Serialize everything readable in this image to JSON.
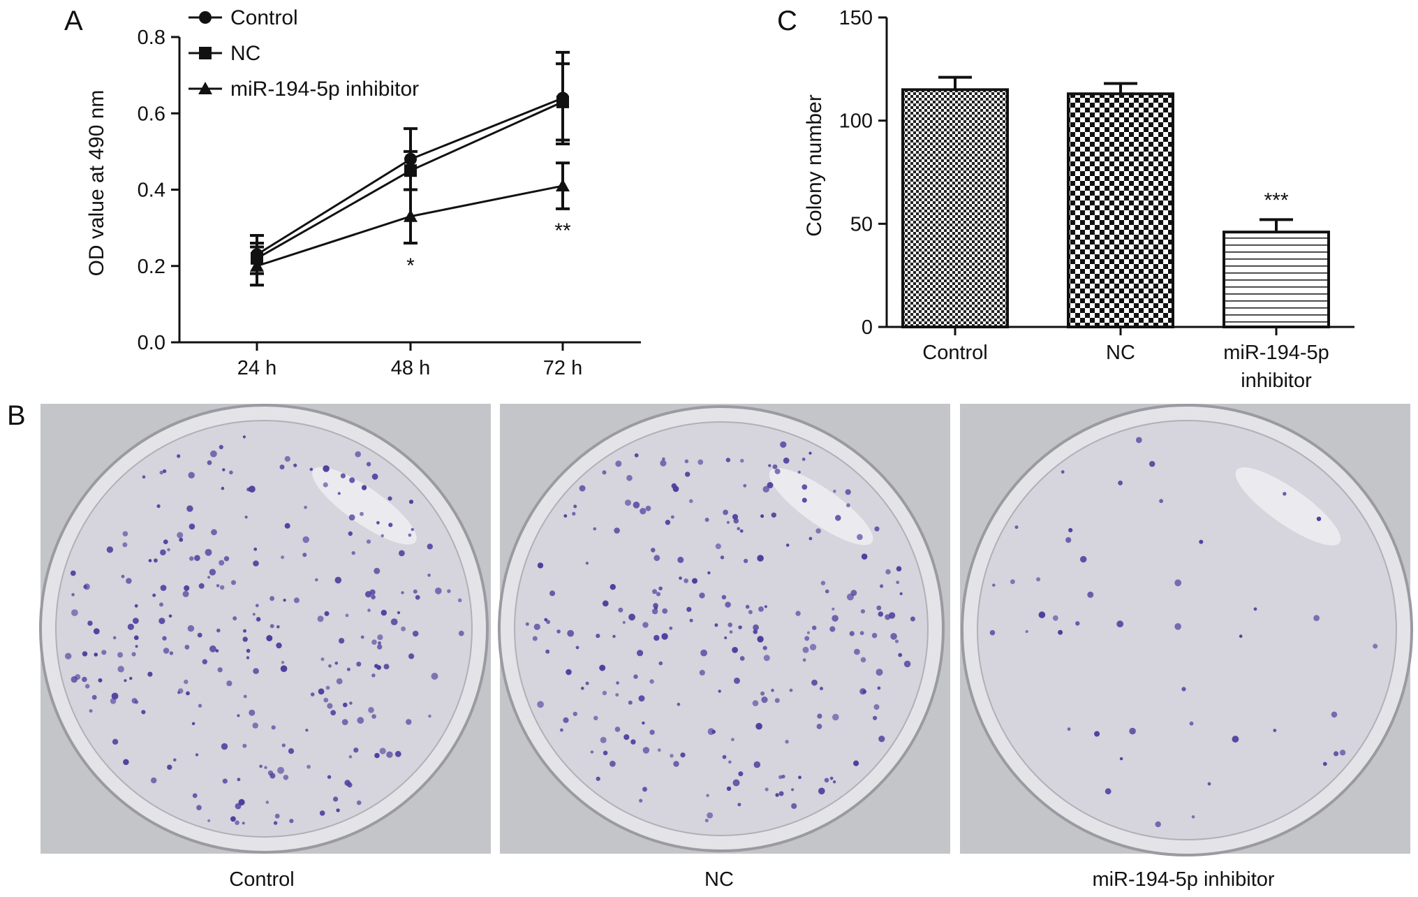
{
  "panels": {
    "a": "A",
    "b": "B",
    "c": "C"
  },
  "colors": {
    "ink": "#111111",
    "dish_bg": "#c4c5c9",
    "dish_inner": "#d6d4dc",
    "colony": "#4b3f9e"
  },
  "chart_data": [
    {
      "panel": "A",
      "type": "line",
      "xlabel": "",
      "ylabel": "OD value at 490 nm",
      "categories": [
        "24 h",
        "48 h",
        "72 h"
      ],
      "ylim": [
        0.0,
        0.8
      ],
      "yticks": [
        "0.0",
        "0.2",
        "0.4",
        "0.6",
        "0.8"
      ],
      "legend": "top-left",
      "series": [
        {
          "name": "Control",
          "marker": "circle",
          "values": [
            0.23,
            0.48,
            0.64
          ],
          "errors": [
            0.05,
            0.08,
            0.12
          ]
        },
        {
          "name": "NC",
          "marker": "square",
          "values": [
            0.22,
            0.45,
            0.63
          ],
          "errors": [
            0.04,
            0.05,
            0.1
          ]
        },
        {
          "name": "miR-194-5p inhibitor",
          "marker": "triangle",
          "values": [
            0.2,
            0.33,
            0.41
          ],
          "errors": [
            0.05,
            0.07,
            0.06
          ]
        }
      ],
      "annotations": [
        {
          "category": "48 h",
          "text": "*"
        },
        {
          "category": "72 h",
          "text": "**"
        }
      ]
    },
    {
      "panel": "C",
      "type": "bar",
      "xlabel": "",
      "ylabel": "Colony number",
      "categories": [
        [
          "Control"
        ],
        [
          "NC"
        ],
        [
          "miR-194-5p",
          "inhibitor"
        ]
      ],
      "ylim": [
        0,
        150
      ],
      "yticks": [
        "0",
        "50",
        "100",
        "150"
      ],
      "values": [
        115,
        113,
        46
      ],
      "errors": [
        6,
        5,
        6
      ],
      "patterns": [
        "fine-check",
        "checker",
        "hlines"
      ],
      "annotations": [
        {
          "category": 2,
          "text": "***"
        }
      ]
    }
  ],
  "images": {
    "dishes": [
      {
        "caption": "Control",
        "colonies": 260
      },
      {
        "caption": "NC",
        "colonies": 240
      },
      {
        "caption": "miR-194-5p inhibitor",
        "colonies": 45
      }
    ]
  }
}
